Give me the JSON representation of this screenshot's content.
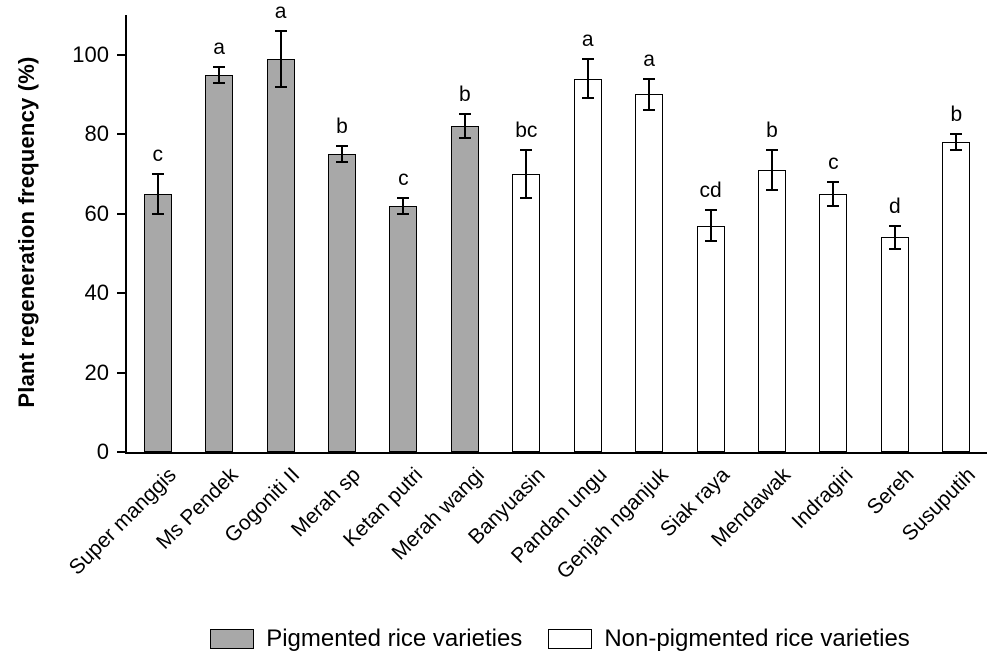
{
  "chart_data": {
    "type": "bar",
    "title": "",
    "xlabel": "",
    "ylabel": "Plant regeneration frequency (%)",
    "ylim": [
      0,
      110
    ],
    "yticks": [
      0,
      20,
      40,
      60,
      80,
      100
    ],
    "grid": false,
    "legend_position": "bottom",
    "legend": [
      {
        "group": "pigmented",
        "label": "Pigmented rice varieties",
        "color": "#a8a8a8"
      },
      {
        "group": "non_pigmented",
        "label": "Non-pigmented rice varieties",
        "color": "#ffffff"
      }
    ],
    "bars": [
      {
        "category": "Super manggis",
        "value": 65,
        "error": 5,
        "letter": "c",
        "group": "pigmented"
      },
      {
        "category": "Ms Pendek",
        "value": 95,
        "error": 2,
        "letter": "a",
        "group": "pigmented"
      },
      {
        "category": "Gogoniti II",
        "value": 99,
        "error": 7,
        "letter": "a",
        "group": "pigmented"
      },
      {
        "category": "Merah sp",
        "value": 75,
        "error": 2,
        "letter": "b",
        "group": "pigmented"
      },
      {
        "category": "Ketan putri",
        "value": 62,
        "error": 2,
        "letter": "c",
        "group": "pigmented"
      },
      {
        "category": "Merah wangi",
        "value": 82,
        "error": 3,
        "letter": "b",
        "group": "pigmented"
      },
      {
        "category": "Banyuasin",
        "value": 70,
        "error": 6,
        "letter": "bc",
        "group": "non_pigmented"
      },
      {
        "category": "Pandan ungu",
        "value": 94,
        "error": 5,
        "letter": "a",
        "group": "non_pigmented"
      },
      {
        "category": "Genjah nganjuk",
        "value": 90,
        "error": 4,
        "letter": "a",
        "group": "non_pigmented"
      },
      {
        "category": "Siak raya",
        "value": 57,
        "error": 4,
        "letter": "cd",
        "group": "non_pigmented"
      },
      {
        "category": "Mendawak",
        "value": 71,
        "error": 5,
        "letter": "b",
        "group": "non_pigmented"
      },
      {
        "category": "Indragiri",
        "value": 65,
        "error": 3,
        "letter": "c",
        "group": "non_pigmented"
      },
      {
        "category": "Sereh",
        "value": 54,
        "error": 3,
        "letter": "d",
        "group": "non_pigmented"
      },
      {
        "category": "Susuputih",
        "value": 78,
        "error": 2,
        "letter": "b",
        "group": "non_pigmented"
      }
    ]
  }
}
